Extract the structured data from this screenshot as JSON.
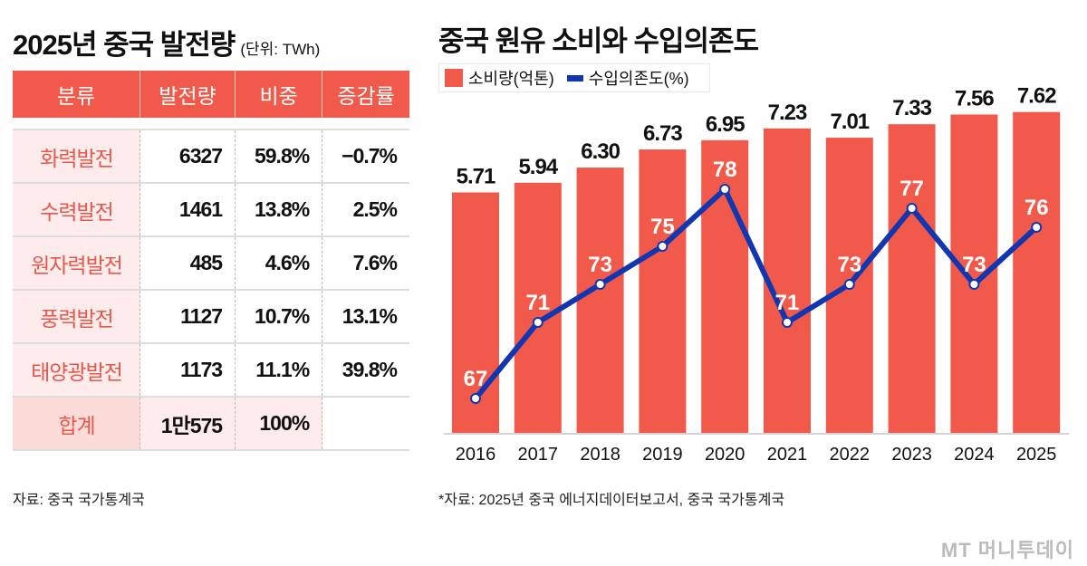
{
  "left": {
    "title": "2025년 중국 발전량",
    "unit": "(단위: TWh)",
    "table": {
      "headers": [
        "분류",
        "발전량",
        "비중",
        "증감률"
      ],
      "rows": [
        [
          "화력발전",
          "6327",
          "59.8%",
          "−0.7%"
        ],
        [
          "수력발전",
          "1461",
          "13.8%",
          "2.5%"
        ],
        [
          "원자력발전",
          "485",
          "4.6%",
          "7.6%"
        ],
        [
          "풍력발전",
          "1127",
          "10.7%",
          "13.1%"
        ],
        [
          "태양광발전",
          "1173",
          "11.1%",
          "39.8%"
        ]
      ],
      "total": [
        "합계",
        "1만575",
        "100%",
        ""
      ]
    },
    "source": "자료: 중국 국가통계국"
  },
  "chart_data": {
    "type": "bar",
    "title": "중국 원유 소비와 수입의존도",
    "categories": [
      "2016",
      "2017",
      "2018",
      "2019",
      "2020",
      "2021",
      "2022",
      "2023",
      "2024",
      "2025"
    ],
    "series": [
      {
        "name": "소비량(억톤)",
        "type": "bar",
        "color": "#f15a4a",
        "values": [
          5.71,
          5.94,
          6.3,
          6.73,
          6.95,
          7.23,
          7.01,
          7.33,
          7.56,
          7.62
        ],
        "labels": [
          "5.71",
          "5.94",
          "6.30",
          "6.73",
          "6.95",
          "7.23",
          "7.01",
          "7.33",
          "7.56",
          "7.62"
        ]
      },
      {
        "name": "수입의존도(%)",
        "type": "line",
        "color": "#1236b0",
        "values": [
          67,
          71,
          73,
          75,
          78,
          71,
          73,
          77,
          73,
          76
        ]
      }
    ],
    "legend": "top-left",
    "grid": false,
    "source": "*자료: 2025년 중국 에너지데이터보고서, 중국 국가통계국"
  },
  "logo": "MT 머니투데이"
}
